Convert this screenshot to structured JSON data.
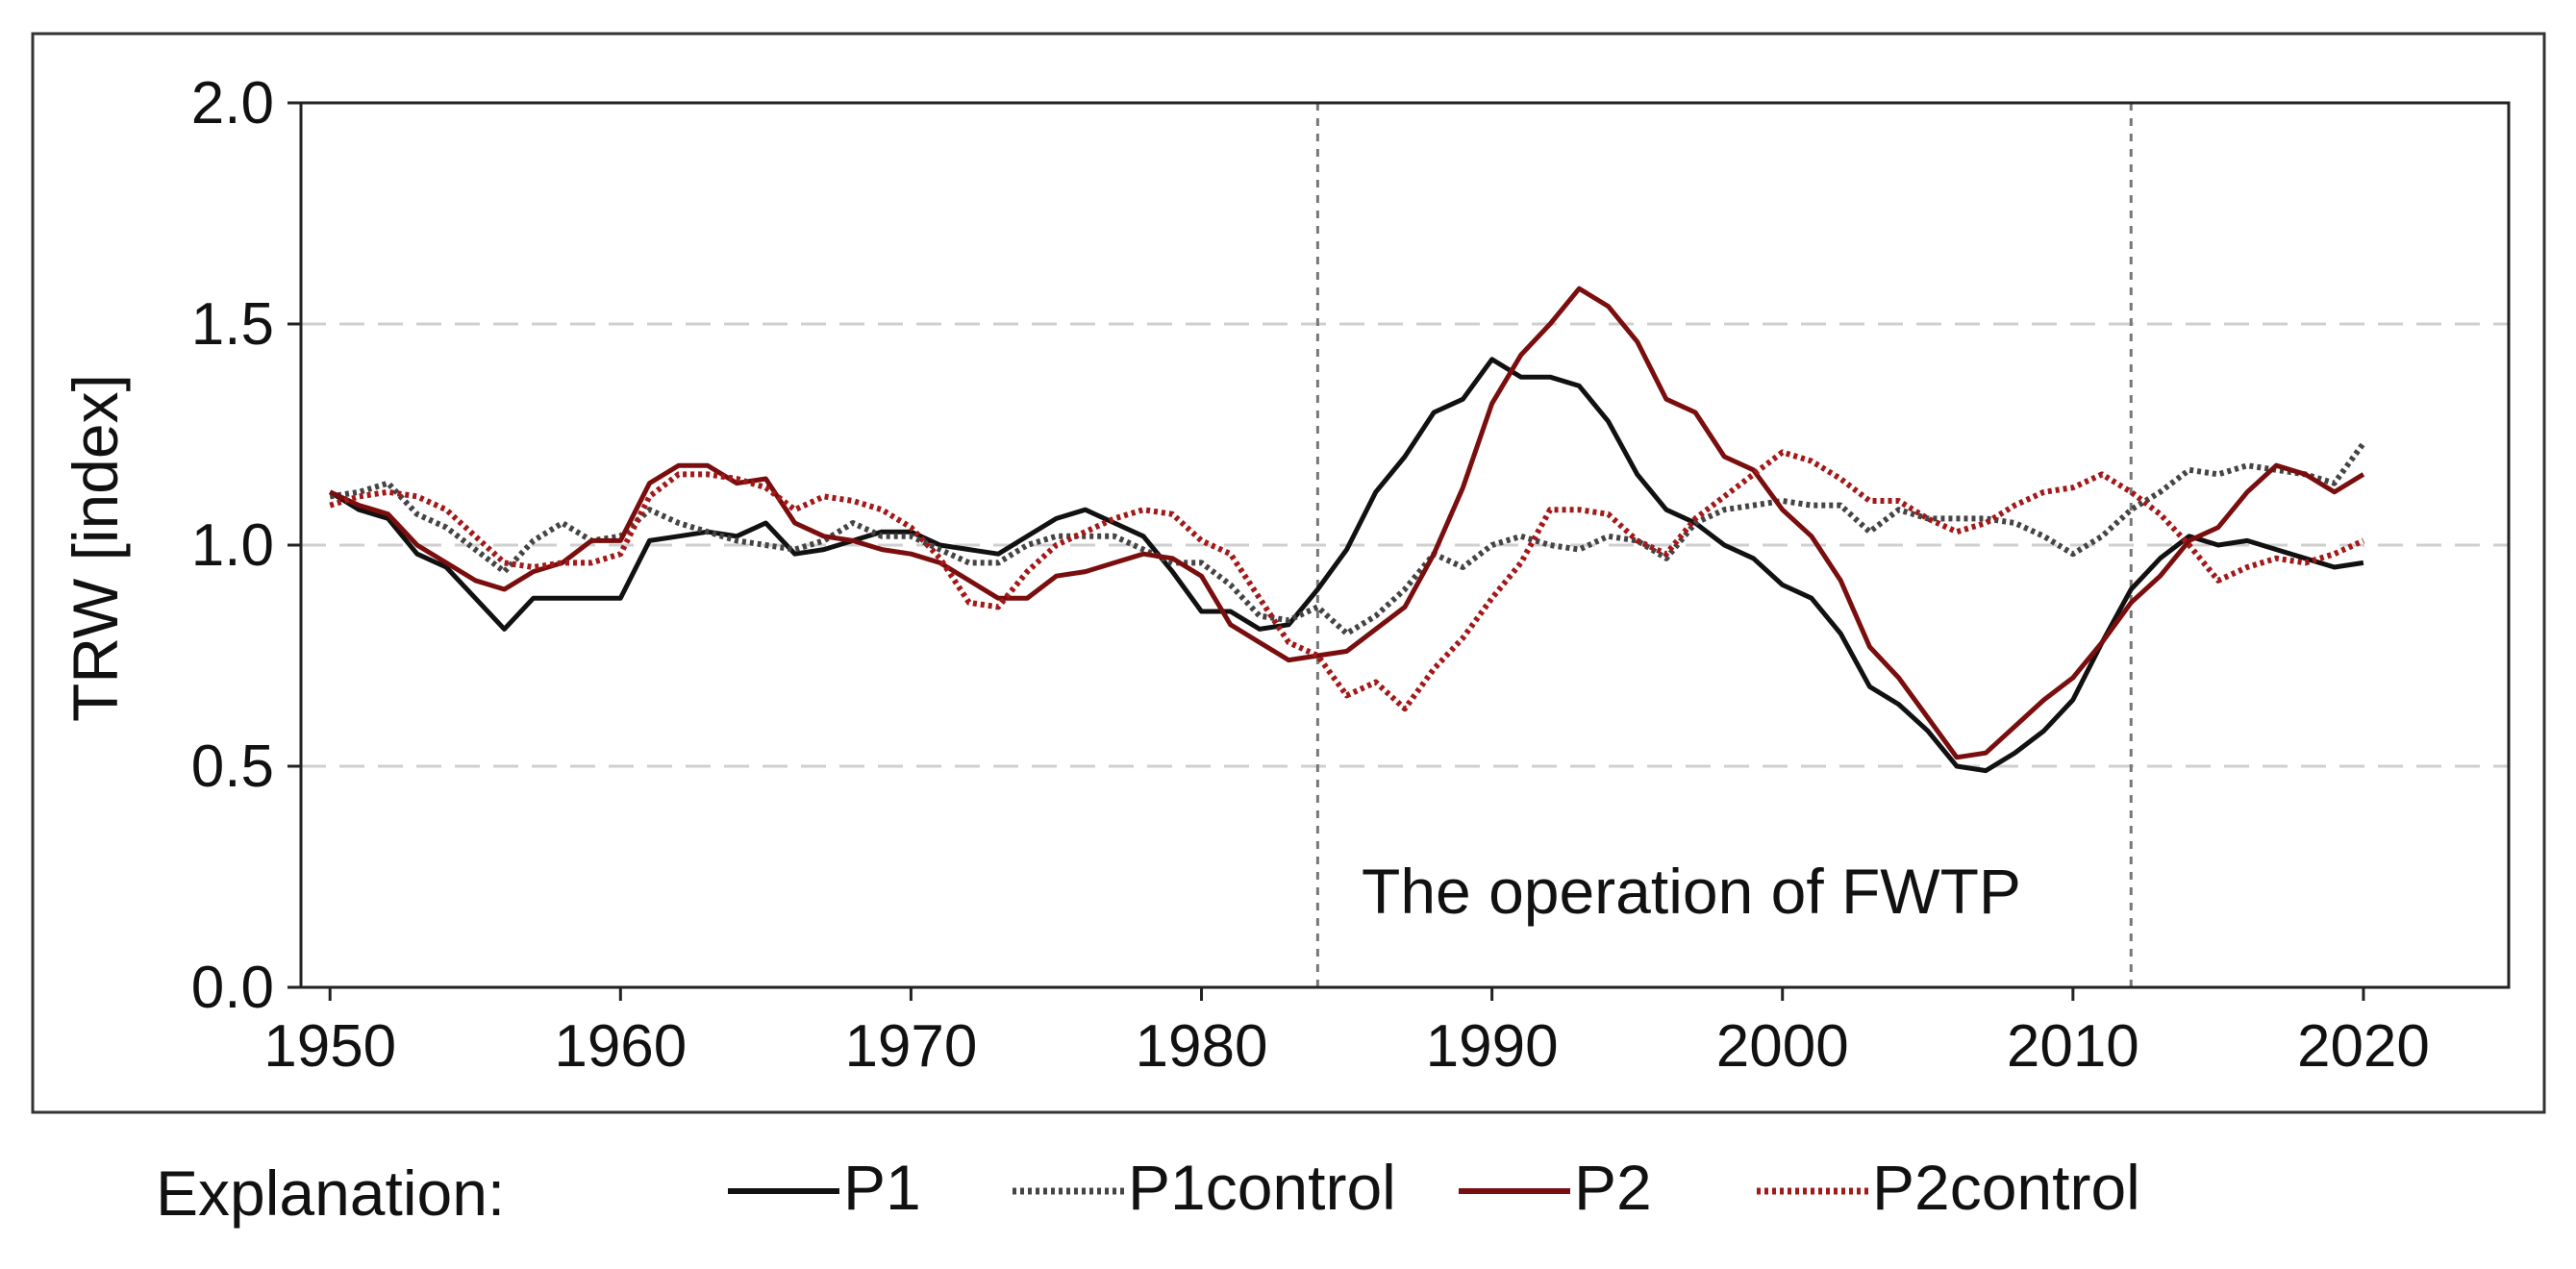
{
  "chart_data": {
    "type": "line",
    "title": "",
    "xlabel": "",
    "ylabel": "TRW [index]",
    "xlim": [
      1949,
      2025
    ],
    "ylim": [
      0.0,
      2.0
    ],
    "xticks": [
      1950,
      1960,
      1970,
      1980,
      1990,
      2000,
      2010,
      2020
    ],
    "yticks": [
      "0.0",
      "0.5",
      "1.0",
      "1.5",
      "2.0"
    ],
    "grid": "horizontal dashed at 0.5, 1.0, 1.5",
    "x": [
      1950,
      1951,
      1952,
      1953,
      1954,
      1955,
      1956,
      1957,
      1958,
      1959,
      1960,
      1961,
      1962,
      1963,
      1964,
      1965,
      1966,
      1967,
      1968,
      1969,
      1970,
      1971,
      1972,
      1973,
      1974,
      1975,
      1976,
      1977,
      1978,
      1979,
      1980,
      1981,
      1982,
      1983,
      1984,
      1985,
      1986,
      1987,
      1988,
      1989,
      1990,
      1991,
      1992,
      1993,
      1994,
      1995,
      1996,
      1997,
      1998,
      1999,
      2000,
      2001,
      2002,
      2003,
      2004,
      2005,
      2006,
      2007,
      2008,
      2009,
      2010,
      2011,
      2012,
      2013,
      2014,
      2015,
      2016,
      2017,
      2018,
      2019,
      2020
    ],
    "series": [
      {
        "name": "P1",
        "color": "#111111",
        "style": "solid",
        "values": [
          1.12,
          1.08,
          1.06,
          0.98,
          0.95,
          0.88,
          0.81,
          0.88,
          0.88,
          0.88,
          0.88,
          1.01,
          1.02,
          1.03,
          1.02,
          1.05,
          0.98,
          0.99,
          1.01,
          1.03,
          1.03,
          1.0,
          0.99,
          0.98,
          1.02,
          1.06,
          1.08,
          1.05,
          1.02,
          0.94,
          0.85,
          0.85,
          0.81,
          0.82,
          0.9,
          0.99,
          1.12,
          1.2,
          1.3,
          1.33,
          1.42,
          1.38,
          1.38,
          1.36,
          1.28,
          1.16,
          1.08,
          1.05,
          1.0,
          0.97,
          0.91,
          0.88,
          0.8,
          0.68,
          0.64,
          0.58,
          0.5,
          0.49,
          0.53,
          0.58,
          0.65,
          0.78,
          0.9,
          0.97,
          1.02,
          1.0,
          1.01,
          0.99,
          0.97,
          0.95,
          0.96
        ]
      },
      {
        "name": "P1control",
        "color": "#444444",
        "style": "dotted",
        "values": [
          1.11,
          1.12,
          1.14,
          1.07,
          1.04,
          0.99,
          0.94,
          1.01,
          1.05,
          1.01,
          1.02,
          1.08,
          1.05,
          1.03,
          1.01,
          1.0,
          0.99,
          1.01,
          1.05,
          1.02,
          1.02,
          0.99,
          0.96,
          0.96,
          1.0,
          1.02,
          1.02,
          1.02,
          0.99,
          0.96,
          0.96,
          0.91,
          0.84,
          0.83,
          0.86,
          0.8,
          0.84,
          0.9,
          0.98,
          0.95,
          1.0,
          1.02,
          1.0,
          0.99,
          1.02,
          1.01,
          0.97,
          1.05,
          1.08,
          1.09,
          1.1,
          1.09,
          1.09,
          1.03,
          1.08,
          1.06,
          1.06,
          1.06,
          1.05,
          1.02,
          0.98,
          1.02,
          1.08,
          1.12,
          1.17,
          1.16,
          1.18,
          1.17,
          1.16,
          1.14,
          1.23
        ]
      },
      {
        "name": "P2",
        "color": "#7a0d0d",
        "style": "solid",
        "values": [
          1.12,
          1.09,
          1.07,
          1.0,
          0.96,
          0.92,
          0.9,
          0.94,
          0.96,
          1.01,
          1.01,
          1.14,
          1.18,
          1.18,
          1.14,
          1.15,
          1.05,
          1.02,
          1.01,
          0.99,
          0.98,
          0.96,
          0.92,
          0.88,
          0.88,
          0.93,
          0.94,
          0.96,
          0.98,
          0.97,
          0.93,
          0.82,
          0.78,
          0.74,
          0.75,
          0.76,
          0.81,
          0.86,
          0.98,
          1.13,
          1.32,
          1.43,
          1.5,
          1.58,
          1.54,
          1.46,
          1.33,
          1.3,
          1.2,
          1.17,
          1.08,
          1.02,
          0.92,
          0.77,
          0.7,
          0.61,
          0.52,
          0.53,
          0.59,
          0.65,
          0.7,
          0.78,
          0.87,
          0.93,
          1.01,
          1.04,
          1.12,
          1.18,
          1.16,
          1.12,
          1.16
        ]
      },
      {
        "name": "P2control",
        "color": "#a31818",
        "style": "dotted",
        "values": [
          1.09,
          1.11,
          1.12,
          1.11,
          1.08,
          1.02,
          0.96,
          0.95,
          0.96,
          0.96,
          0.98,
          1.11,
          1.16,
          1.16,
          1.15,
          1.13,
          1.08,
          1.11,
          1.1,
          1.08,
          1.04,
          0.97,
          0.87,
          0.86,
          0.94,
          1.0,
          1.03,
          1.06,
          1.08,
          1.07,
          1.01,
          0.98,
          0.88,
          0.78,
          0.75,
          0.66,
          0.69,
          0.63,
          0.72,
          0.79,
          0.88,
          0.96,
          1.08,
          1.08,
          1.07,
          1.01,
          0.98,
          1.06,
          1.11,
          1.16,
          1.21,
          1.19,
          1.15,
          1.1,
          1.1,
          1.06,
          1.03,
          1.05,
          1.09,
          1.12,
          1.13,
          1.16,
          1.12,
          1.07,
          1.0,
          0.92,
          0.95,
          0.97,
          0.96,
          0.98,
          1.01
        ]
      }
    ],
    "vlines": [
      1984,
      2012
    ],
    "annotation": "The operation of FWTP",
    "legend": {
      "title": "Explanation:",
      "placement": "bottom"
    }
  }
}
